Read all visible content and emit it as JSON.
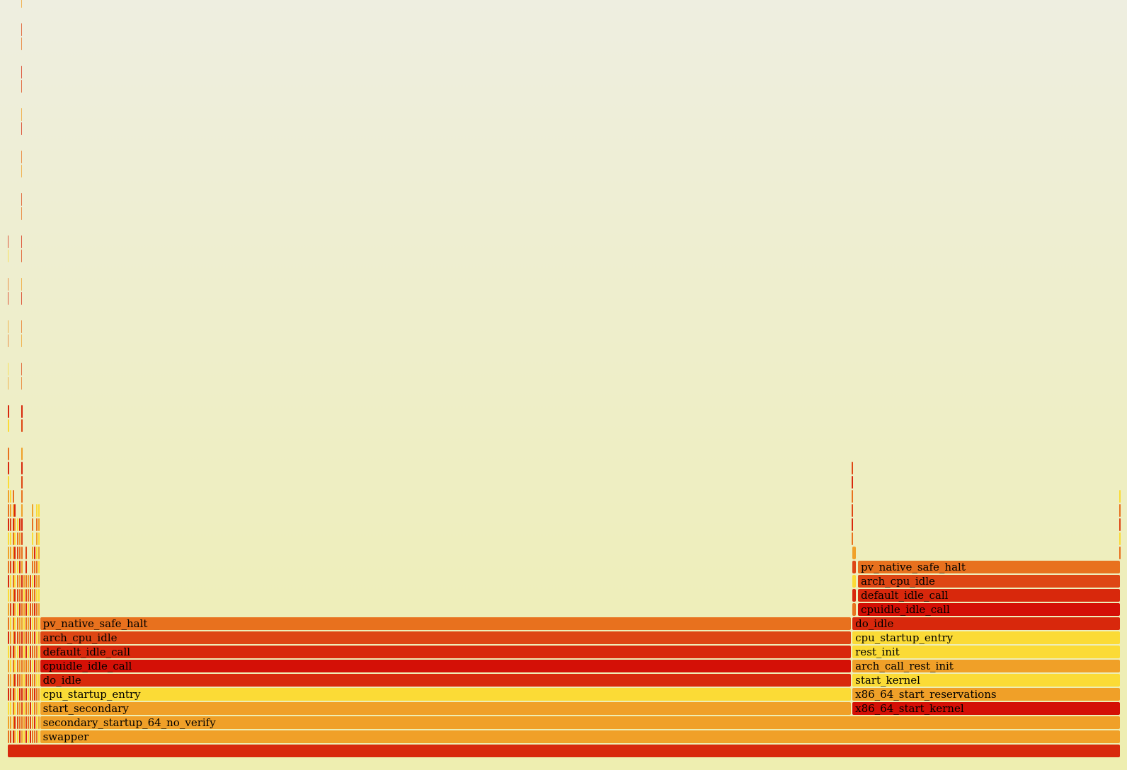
{
  "palette": {
    "yellow": "#fbdb36",
    "light_orange": "#f0a028",
    "orange": "#e8711e",
    "dark_orange": "#de4614",
    "red": "#d8280c",
    "deep_red": "#d41006",
    "bg_top": "#eeeee0",
    "bg_bottom": "#eeeeb0"
  },
  "flamegraph": {
    "total_samples": 1000,
    "frames": [
      {
        "name": "",
        "depth": 0,
        "start": 0,
        "width": 1000,
        "color": "red"
      },
      {
        "name": "swapper",
        "depth": 1,
        "start": 29,
        "width": 971,
        "color": "light_orange"
      },
      {
        "name": "secondary_startup_64_no_verify",
        "depth": 2,
        "start": 29,
        "width": 971,
        "color": "light_orange"
      },
      {
        "name": "start_secondary",
        "depth": 3,
        "start": 29,
        "width": 729,
        "color": "light_orange"
      },
      {
        "name": "cpu_startup_entry",
        "depth": 4,
        "start": 29,
        "width": 729,
        "color": "yellow"
      },
      {
        "name": "do_idle",
        "depth": 5,
        "start": 29,
        "width": 729,
        "color": "red"
      },
      {
        "name": "cpuidle_idle_call",
        "depth": 6,
        "start": 29,
        "width": 729,
        "color": "deep_red"
      },
      {
        "name": "default_idle_call",
        "depth": 7,
        "start": 29,
        "width": 729,
        "color": "red"
      },
      {
        "name": "arch_cpu_idle",
        "depth": 8,
        "start": 29,
        "width": 729,
        "color": "dark_orange"
      },
      {
        "name": "pv_native_safe_halt",
        "depth": 9,
        "start": 29,
        "width": 729,
        "color": "orange"
      },
      {
        "name": "x86_64_start_kernel",
        "depth": 3,
        "start": 759,
        "width": 241,
        "color": "deep_red"
      },
      {
        "name": "x86_64_start_reservations",
        "depth": 4,
        "start": 759,
        "width": 241,
        "color": "light_orange"
      },
      {
        "name": "start_kernel",
        "depth": 5,
        "start": 759,
        "width": 241,
        "color": "yellow"
      },
      {
        "name": "arch_call_rest_init",
        "depth": 6,
        "start": 759,
        "width": 241,
        "color": "light_orange"
      },
      {
        "name": "rest_init",
        "depth": 7,
        "start": 759,
        "width": 241,
        "color": "yellow"
      },
      {
        "name": "cpu_startup_entry",
        "depth": 8,
        "start": 759,
        "width": 241,
        "color": "yellow"
      },
      {
        "name": "do_idle",
        "depth": 9,
        "start": 759,
        "width": 241,
        "color": "red"
      },
      {
        "name": "cpuidle_idle_call",
        "depth": 10,
        "start": 764,
        "width": 236,
        "color": "deep_red"
      },
      {
        "name": "default_idle_call",
        "depth": 11,
        "start": 764,
        "width": 236,
        "color": "red"
      },
      {
        "name": "arch_cpu_idle",
        "depth": 12,
        "start": 764,
        "width": 236,
        "color": "dark_orange"
      },
      {
        "name": "pv_native_safe_halt",
        "depth": 13,
        "start": 764,
        "width": 236,
        "color": "orange"
      },
      {
        "name": "",
        "depth": 10,
        "start": 759,
        "width": 4,
        "color": "orange"
      },
      {
        "name": "",
        "depth": 11,
        "start": 759,
        "width": 4,
        "color": "red"
      },
      {
        "name": "",
        "depth": 12,
        "start": 759,
        "width": 4,
        "color": "yellow"
      },
      {
        "name": "",
        "depth": 13,
        "start": 759,
        "width": 4,
        "color": "dark_orange"
      },
      {
        "name": "",
        "depth": 14,
        "start": 759,
        "width": 4,
        "color": "light_orange"
      }
    ],
    "narrow_towers": [
      {
        "start": 0.3,
        "min_depth": 1,
        "max_depth": 36,
        "colors": [
          "red",
          "orange",
          "light_orange",
          "yellow"
        ]
      },
      {
        "start": 2.2,
        "min_depth": 1,
        "max_depth": 18,
        "colors": [
          "light_orange",
          "yellow",
          "dark_orange"
        ]
      },
      {
        "start": 4.2,
        "min_depth": 1,
        "max_depth": 18,
        "colors": [
          "red",
          "light_orange",
          "orange"
        ]
      },
      {
        "start": 6.0,
        "min_depth": 1,
        "max_depth": 17,
        "colors": [
          "yellow",
          "light_orange",
          "red"
        ]
      },
      {
        "start": 8.0,
        "min_depth": 1,
        "max_depth": 16,
        "colors": [
          "dark_orange",
          "orange",
          "yellow"
        ]
      },
      {
        "start": 10.0,
        "min_depth": 1,
        "max_depth": 16,
        "colors": [
          "red",
          "orange",
          "light_orange"
        ]
      },
      {
        "start": 11.8,
        "min_depth": 1,
        "max_depth": 53,
        "colors": [
          "orange",
          "dark_orange",
          "red",
          "light_orange"
        ]
      },
      {
        "start": 13.8,
        "min_depth": 1,
        "max_depth": 12,
        "colors": [
          "yellow",
          "light_orange"
        ]
      },
      {
        "start": 15.7,
        "min_depth": 1,
        "max_depth": 14,
        "colors": [
          "red",
          "dark_orange",
          "orange"
        ]
      },
      {
        "start": 17.6,
        "min_depth": 1,
        "max_depth": 12,
        "colors": [
          "light_orange",
          "yellow",
          "orange"
        ]
      },
      {
        "start": 19.5,
        "min_depth": 1,
        "max_depth": 12,
        "colors": [
          "dark_orange",
          "red"
        ]
      },
      {
        "start": 21.4,
        "min_depth": 1,
        "max_depth": 17,
        "colors": [
          "orange",
          "light_orange",
          "yellow"
        ]
      },
      {
        "start": 23.3,
        "min_depth": 1,
        "max_depth": 14,
        "colors": [
          "red",
          "orange"
        ]
      },
      {
        "start": 25.5,
        "min_depth": 1,
        "max_depth": 17,
        "colors": [
          "yellow",
          "light_orange",
          "orange"
        ]
      },
      {
        "start": 27.4,
        "min_depth": 1,
        "max_depth": 17,
        "colors": [
          "light_orange",
          "yellow"
        ]
      },
      {
        "start": 758.2,
        "min_depth": 15,
        "max_depth": 20,
        "colors": [
          "orange",
          "red",
          "dark_orange"
        ]
      },
      {
        "start": 998.6,
        "min_depth": 14,
        "max_depth": 18,
        "colors": [
          "orange",
          "yellow",
          "dark_orange"
        ]
      }
    ]
  }
}
